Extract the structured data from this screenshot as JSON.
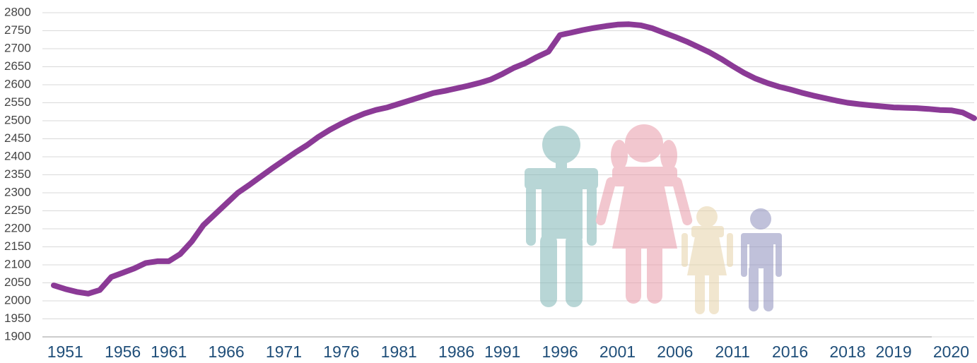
{
  "chart_data": {
    "type": "line",
    "categories": [
      null,
      "1951",
      null,
      null,
      null,
      null,
      "1956",
      null,
      null,
      null,
      "1961",
      null,
      null,
      null,
      null,
      "1966",
      null,
      null,
      null,
      null,
      "1971",
      null,
      null,
      null,
      null,
      "1976",
      null,
      null,
      null,
      null,
      "1981",
      null,
      null,
      null,
      null,
      "1986",
      null,
      null,
      null,
      "1991",
      null,
      null,
      null,
      null,
      "1996",
      null,
      null,
      null,
      null,
      "2001",
      null,
      null,
      null,
      null,
      "2006",
      null,
      null,
      null,
      null,
      "2011",
      null,
      null,
      null,
      null,
      "2016",
      null,
      null,
      null,
      null,
      "2018",
      null,
      null,
      null,
      "2019",
      null,
      null,
      null,
      null,
      "2020",
      null,
      null
    ],
    "series": [
      {
        "color": "#8b3a96",
        "values": [
          2043,
          2033,
          2025,
          2020,
          2030,
          2066,
          2078,
          2090,
          2105,
          2110,
          2110,
          2130,
          2165,
          2210,
          2240,
          2270,
          2300,
          2322,
          2345,
          2368,
          2390,
          2412,
          2432,
          2455,
          2475,
          2492,
          2507,
          2520,
          2530,
          2537,
          2547,
          2557,
          2567,
          2577,
          2583,
          2590,
          2597,
          2605,
          2615,
          2630,
          2647,
          2660,
          2677,
          2692,
          2738,
          2745,
          2752,
          2758,
          2763,
          2767,
          2768,
          2765,
          2757,
          2745,
          2733,
          2720,
          2705,
          2690,
          2672,
          2652,
          2633,
          2617,
          2605,
          2595,
          2587,
          2578,
          2570,
          2563,
          2556,
          2550,
          2546,
          2543,
          2540,
          2537,
          2536,
          2535,
          2533,
          2530,
          2529,
          2523,
          2507
        ]
      }
    ],
    "ylim": [
      1900,
      2800
    ],
    "yticks": [
      1900,
      1950,
      2000,
      2050,
      2100,
      2150,
      2200,
      2250,
      2300,
      2350,
      2400,
      2450,
      2500,
      2550,
      2600,
      2650,
      2700,
      2750,
      2800
    ],
    "grid": true
  }
}
